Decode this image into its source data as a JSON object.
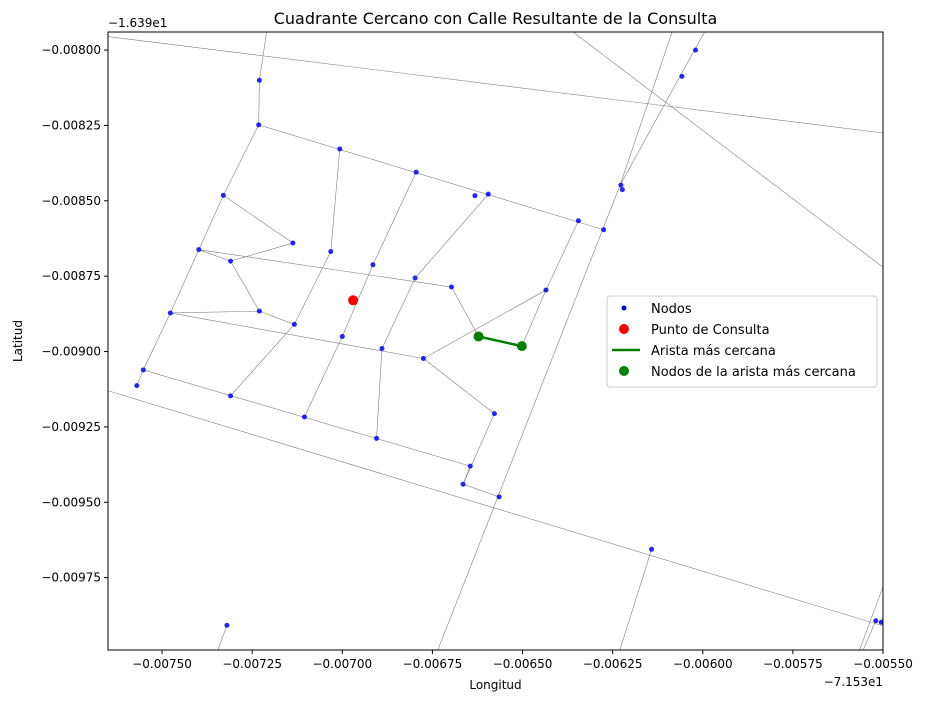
{
  "chart_data": {
    "type": "scatter",
    "title": "Cuadrante Cercano con Calle Resultante de la Consulta",
    "xlabel": "Longitud",
    "ylabel": "Latitud",
    "x_offset_label": "−7.153e1",
    "y_offset_label": "−1.639e1",
    "xlim": [
      -0.00765,
      -0.0055
    ],
    "ylim": [
      -0.00999,
      -0.00794
    ],
    "x_ticks": [
      -0.0075,
      -0.00725,
      -0.007,
      -0.00675,
      -0.0065,
      -0.00625,
      -0.006,
      -0.00575,
      -0.0055
    ],
    "x_tick_labels": [
      "−0.00750",
      "−0.00725",
      "−0.00700",
      "−0.00675",
      "−0.00650",
      "−0.00625",
      "−0.00600",
      "−0.00575",
      "−0.00550"
    ],
    "y_ticks": [
      -0.008,
      -0.00825,
      -0.0085,
      -0.00875,
      -0.009,
      -0.00925,
      -0.0095,
      -0.00975
    ],
    "y_tick_labels": [
      "−0.00800",
      "−0.00825",
      "−0.00850",
      "−0.00875",
      "−0.00900",
      "−0.00925",
      "−0.00950",
      "−0.00975"
    ],
    "grid": false,
    "legend_position": "center-right",
    "colors": {
      "nodes": "#0000ff",
      "query": "#ff0000",
      "nearest": "#008000",
      "edges": "#808080"
    },
    "series": [
      {
        "name": "Nodos",
        "points": [
          [
            -0.00723,
            -0.0081
          ],
          [
            -0.007232,
            -0.008248
          ],
          [
            -0.007007,
            -0.008328
          ],
          [
            -0.006795,
            -0.008405
          ],
          [
            -0.006595,
            -0.008478
          ],
          [
            -0.006632,
            -0.008483
          ],
          [
            -0.006227,
            -0.008448
          ],
          [
            -0.006223,
            -0.008463
          ],
          [
            -0.00602,
            -0.008
          ],
          [
            -0.006058,
            -0.008087
          ],
          [
            -0.00733,
            -0.008482
          ],
          [
            -0.007398,
            -0.008662
          ],
          [
            -0.007137,
            -0.00864
          ],
          [
            -0.007032,
            -0.008668
          ],
          [
            -0.006915,
            -0.008712
          ],
          [
            -0.006798,
            -0.008756
          ],
          [
            -0.006697,
            -0.008786
          ],
          [
            -0.006435,
            -0.008796
          ],
          [
            -0.006345,
            -0.008566
          ],
          [
            -0.006275,
            -0.008596
          ],
          [
            -0.00731,
            -0.0087
          ],
          [
            -0.007477,
            -0.008872
          ],
          [
            -0.00723,
            -0.008866
          ],
          [
            -0.007133,
            -0.00891
          ],
          [
            -0.007,
            -0.00895
          ],
          [
            -0.00689,
            -0.00899
          ],
          [
            -0.006775,
            -0.009023
          ],
          [
            -0.006622,
            -0.00895
          ],
          [
            -0.006502,
            -0.008982
          ],
          [
            -0.007552,
            -0.009061
          ],
          [
            -0.00757,
            -0.009113
          ],
          [
            -0.00731,
            -0.009147
          ],
          [
            -0.007105,
            -0.009217
          ],
          [
            -0.006905,
            -0.009288
          ],
          [
            -0.006578,
            -0.009206
          ],
          [
            -0.006645,
            -0.00938
          ],
          [
            -0.006665,
            -0.00944
          ],
          [
            -0.006565,
            -0.009482
          ],
          [
            -0.006142,
            -0.009656
          ],
          [
            -0.00552,
            -0.009893
          ],
          [
            -0.005505,
            -0.009898
          ],
          [
            -0.00732,
            -0.009908
          ]
        ]
      },
      {
        "name": "Punto de Consulta",
        "points": [
          [
            -0.00697,
            -0.00883
          ]
        ]
      },
      {
        "name": "Arista más cercana",
        "points": [
          [
            -0.006622,
            -0.00895
          ],
          [
            -0.006502,
            -0.008982
          ]
        ]
      },
      {
        "name": "Nodos de la arista más cercana",
        "points": [
          [
            -0.006622,
            -0.00895
          ],
          [
            -0.006502,
            -0.008982
          ]
        ]
      }
    ],
    "edges": [
      [
        [
          -0.00765,
          -0.007955
        ],
        [
          -0.0055,
          -0.008275
        ]
      ],
      [
        [
          -0.007232,
          -0.008248
        ],
        [
          -0.006275,
          -0.008596
        ]
      ],
      [
        [
          -0.007398,
          -0.008662
        ],
        [
          -0.006697,
          -0.008786
        ]
      ],
      [
        [
          -0.007477,
          -0.008872
        ],
        [
          -0.006775,
          -0.009023
        ]
      ],
      [
        [
          -0.006775,
          -0.009023
        ],
        [
          -0.006435,
          -0.008796
        ]
      ],
      [
        [
          -0.006697,
          -0.008786
        ],
        [
          -0.006622,
          -0.00895
        ]
      ],
      [
        [
          -0.006502,
          -0.008982
        ],
        [
          -0.006435,
          -0.008796
        ]
      ],
      [
        [
          -0.006435,
          -0.008796
        ],
        [
          -0.006345,
          -0.008566
        ]
      ],
      [
        [
          -0.007552,
          -0.009061
        ],
        [
          -0.006645,
          -0.00938
        ]
      ],
      [
        [
          -0.00765,
          -0.00913
        ],
        [
          -0.0055,
          -0.00991
        ]
      ],
      [
        [
          -0.00636,
          -0.00794
        ],
        [
          -0.0055,
          -0.00872
        ]
      ],
      [
        [
          -0.006735,
          -0.00999
        ],
        [
          -0.00623,
          -0.00845
        ]
      ],
      [
        [
          -0.00623,
          -0.00845
        ],
        [
          -0.00606,
          -0.00808
        ]
      ],
      [
        [
          -0.00606,
          -0.00808
        ],
        [
          -0.005995,
          -0.00794
        ]
      ],
      [
        [
          -0.00623,
          -0.00845
        ],
        [
          -0.006085,
          -0.00794
        ]
      ],
      [
        [
          -0.006665,
          -0.00944
        ],
        [
          -0.006578,
          -0.009206
        ]
      ],
      [
        [
          -0.006578,
          -0.009206
        ],
        [
          -0.006775,
          -0.009023
        ]
      ],
      [
        [
          -0.006645,
          -0.00938
        ],
        [
          -0.006665,
          -0.00944
        ]
      ],
      [
        [
          -0.006665,
          -0.00944
        ],
        [
          -0.006565,
          -0.009482
        ]
      ],
      [
        [
          -0.00721,
          -0.00794
        ],
        [
          -0.00723,
          -0.0081
        ]
      ],
      [
        [
          -0.00723,
          -0.0081
        ],
        [
          -0.007232,
          -0.008248
        ]
      ],
      [
        [
          -0.007232,
          -0.008248
        ],
        [
          -0.00733,
          -0.008482
        ]
      ],
      [
        [
          -0.00733,
          -0.008482
        ],
        [
          -0.007398,
          -0.008662
        ]
      ],
      [
        [
          -0.007398,
          -0.008662
        ],
        [
          -0.007477,
          -0.008872
        ]
      ],
      [
        [
          -0.007477,
          -0.008872
        ],
        [
          -0.007552,
          -0.009061
        ]
      ],
      [
        [
          -0.007552,
          -0.009061
        ],
        [
          -0.00757,
          -0.009113
        ]
      ],
      [
        [
          -0.00733,
          -0.008482
        ],
        [
          -0.007137,
          -0.00864
        ]
      ],
      [
        [
          -0.007398,
          -0.008662
        ],
        [
          -0.00731,
          -0.0087
        ]
      ],
      [
        [
          -0.00731,
          -0.0087
        ],
        [
          -0.00723,
          -0.008866
        ]
      ],
      [
        [
          -0.007477,
          -0.008872
        ],
        [
          -0.00723,
          -0.008866
        ]
      ],
      [
        [
          -0.00723,
          -0.008866
        ],
        [
          -0.007133,
          -0.00891
        ]
      ],
      [
        [
          -0.00731,
          -0.0087
        ],
        [
          -0.007137,
          -0.00864
        ]
      ],
      [
        [
          -0.007007,
          -0.008328
        ],
        [
          -0.007032,
          -0.008668
        ]
      ],
      [
        [
          -0.007032,
          -0.008668
        ],
        [
          -0.007133,
          -0.00891
        ]
      ],
      [
        [
          -0.007133,
          -0.00891
        ],
        [
          -0.00731,
          -0.009147
        ]
      ],
      [
        [
          -0.006795,
          -0.008405
        ],
        [
          -0.006915,
          -0.008712
        ]
      ],
      [
        [
          -0.006915,
          -0.008712
        ],
        [
          -0.007,
          -0.00895
        ]
      ],
      [
        [
          -0.007,
          -0.00895
        ],
        [
          -0.007105,
          -0.009217
        ]
      ],
      [
        [
          -0.006595,
          -0.008478
        ],
        [
          -0.006798,
          -0.008756
        ]
      ],
      [
        [
          -0.006798,
          -0.008756
        ],
        [
          -0.00689,
          -0.00899
        ]
      ],
      [
        [
          -0.00689,
          -0.00899
        ],
        [
          -0.006905,
          -0.009288
        ]
      ],
      [
        [
          -0.006142,
          -0.009656
        ],
        [
          -0.00623,
          -0.00999
        ]
      ],
      [
        [
          -0.00552,
          -0.009893
        ],
        [
          -0.005555,
          -0.00999
        ]
      ],
      [
        [
          -0.005505,
          -0.009898
        ],
        [
          -0.0055,
          -0.00988
        ]
      ],
      [
        [
          -0.0055,
          -0.00978
        ],
        [
          -0.005565,
          -0.00999
        ]
      ],
      [
        [
          -0.00732,
          -0.009908
        ],
        [
          -0.007345,
          -0.00999
        ]
      ]
    ]
  }
}
